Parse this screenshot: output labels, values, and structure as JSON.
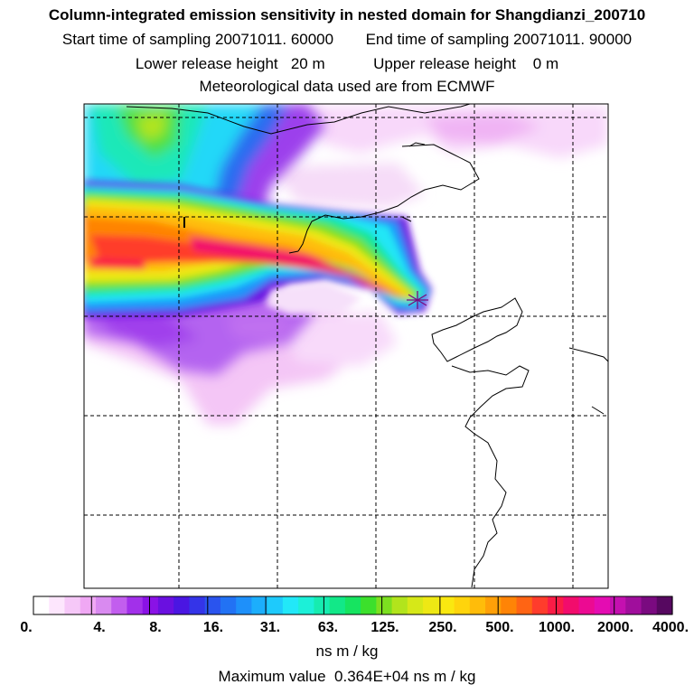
{
  "header": {
    "title": "Column-integrated emission sensitivity in nested domain for Shangdianzi_200710",
    "start_label": "Start time of sampling 20071011. 60000",
    "end_label": "End time of sampling 20071011. 90000",
    "lower_label": "Lower release height   20 m",
    "upper_label": "Upper release height    0 m",
    "met_label": "Meteorological data used are from ECMWF"
  },
  "colorbar": {
    "tick_labels": [
      "0.",
      "4.",
      "8.",
      "16.",
      "31.",
      "63.",
      "125.",
      "250.",
      "500.",
      "1000.",
      "2000.",
      "4000."
    ],
    "colors": [
      "#ffffff",
      "#fde6fd",
      "#f6c8f8",
      "#f0a8f4",
      "#d98af0",
      "#c25eee",
      "#a230ea",
      "#8a12e6",
      "#6a10e0",
      "#4a16e2",
      "#3434e8",
      "#2a54ee",
      "#2272f4",
      "#1e90fa",
      "#1caefc",
      "#1ecafc",
      "#22e8f8",
      "#1cf0d8",
      "#16ecb0",
      "#12e888",
      "#16e460",
      "#3ce02c",
      "#7ce020",
      "#b2e41c",
      "#d6e818",
      "#eee814",
      "#fae810",
      "#ffd40c",
      "#ffbc0a",
      "#ffa008",
      "#ff8406",
      "#ff6414",
      "#ff3c2c",
      "#fa1c46",
      "#f20c6c",
      "#ec0a92",
      "#e40cb2",
      "#c410b0",
      "#a00e9c",
      "#7a0a80",
      "#560860"
    ],
    "unit_label": "ns m / kg"
  },
  "footer": {
    "max_label": "Maximum value  0.364E+04 ns m / kg"
  },
  "colors": {
    "plume_core": "#ff3c2c",
    "receptor_marker": "#7a0a80"
  }
}
